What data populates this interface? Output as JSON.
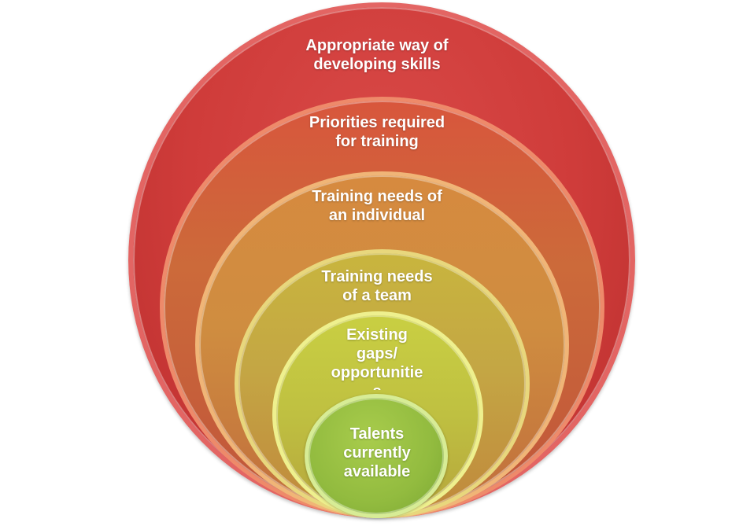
{
  "diagram": {
    "levels": [
      {
        "label": "Appropriate way of\ndeveloping skills",
        "color": "#cf3c3a"
      },
      {
        "label": "Priorities required\nfor training",
        "color": "#cc6a3a"
      },
      {
        "label": "Training needs of\nan individual",
        "color": "#cf8d40"
      },
      {
        "label": "Training needs\nof a team",
        "color": "#c4a644"
      },
      {
        "label": "Existing\ngaps/\nopportunitie\ns",
        "color": "#bfc041"
      },
      {
        "label": "Talents\ncurrently\navailable",
        "color": "#92bb3f"
      }
    ]
  }
}
